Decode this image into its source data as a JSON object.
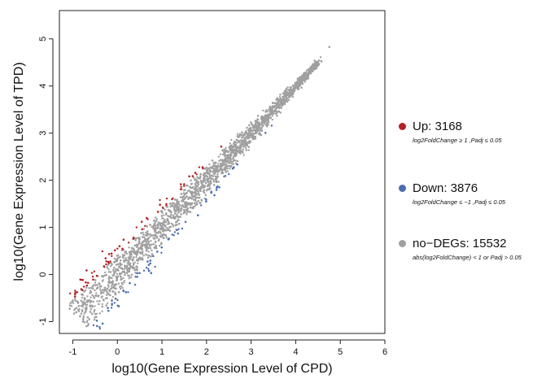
{
  "chart_data": {
    "type": "scatter",
    "xlabel": "log10(Gene Expression Level of CPD)",
    "ylabel": "log10(Gene Expression Level of TPD)",
    "xlim": [
      -1.3,
      6.0
    ],
    "ylim": [
      -1.25,
      5.6
    ],
    "x_ticks": [
      -1,
      0,
      1,
      2,
      3,
      4,
      5,
      6
    ],
    "y_ticks": [
      -1,
      0,
      1,
      2,
      3,
      4,
      5
    ],
    "grid": false,
    "legend_position": "right",
    "series": [
      {
        "name": "Up",
        "label": "Up: 3168",
        "count": 3168,
        "color": "#b22222",
        "condition": "log2FoldChange ≥ 1 ,Padj ≤ 0.05"
      },
      {
        "name": "Down",
        "label": "Down: 3876",
        "count": 3876,
        "color": "#4a6db3",
        "condition": "log2FoldChange ≤ −1 ,Padj ≤ 0.05"
      },
      {
        "name": "no-DEGs",
        "label": "no−DEGs: 15532",
        "count": 15532,
        "color": "#a0a0a0",
        "condition": "abs(log2FoldChange) < 1  or Padj > 0.05"
      }
    ]
  }
}
